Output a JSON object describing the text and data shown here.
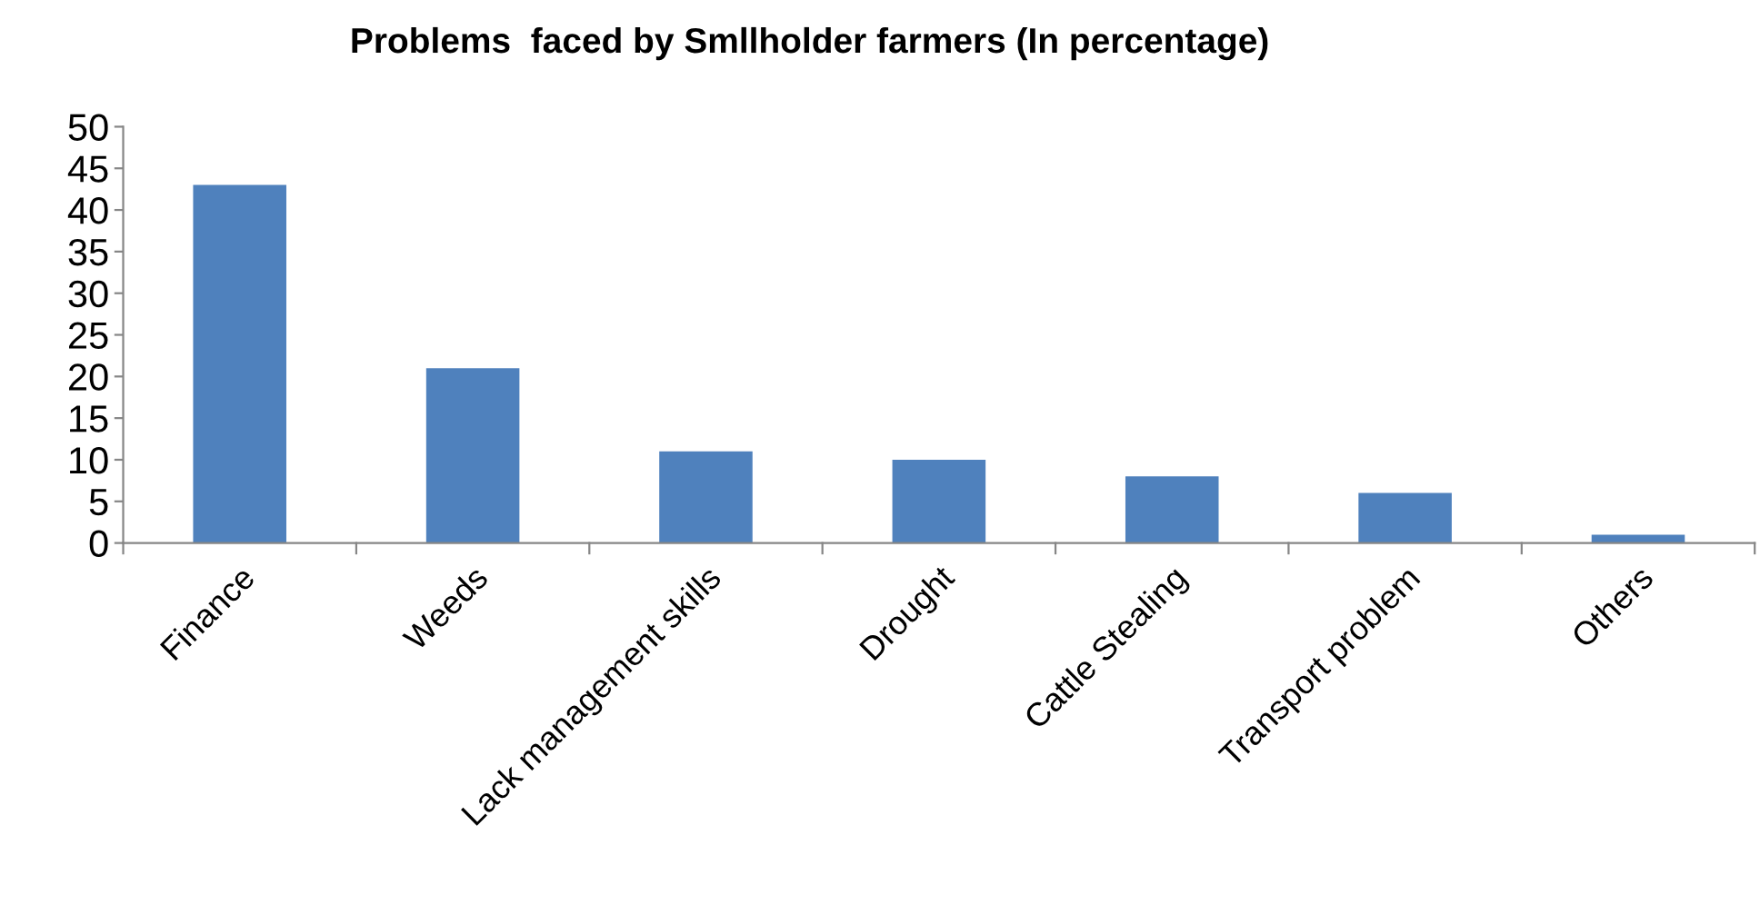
{
  "chart_data": {
    "type": "bar",
    "title": "Problems  faced by Smllholder farmers (In percentage)",
    "categories": [
      "Finance",
      "Weeds",
      "Lack management skills",
      "Drought",
      "Cattle Stealing",
      "Transport problem",
      "Others"
    ],
    "values": [
      43,
      21,
      11,
      10,
      8,
      6,
      1
    ],
    "color": "#4f81bd",
    "ylim": [
      0,
      50
    ],
    "yticks": [
      0,
      5,
      10,
      15,
      20,
      25,
      30,
      35,
      40,
      45,
      50
    ],
    "grid": false
  }
}
